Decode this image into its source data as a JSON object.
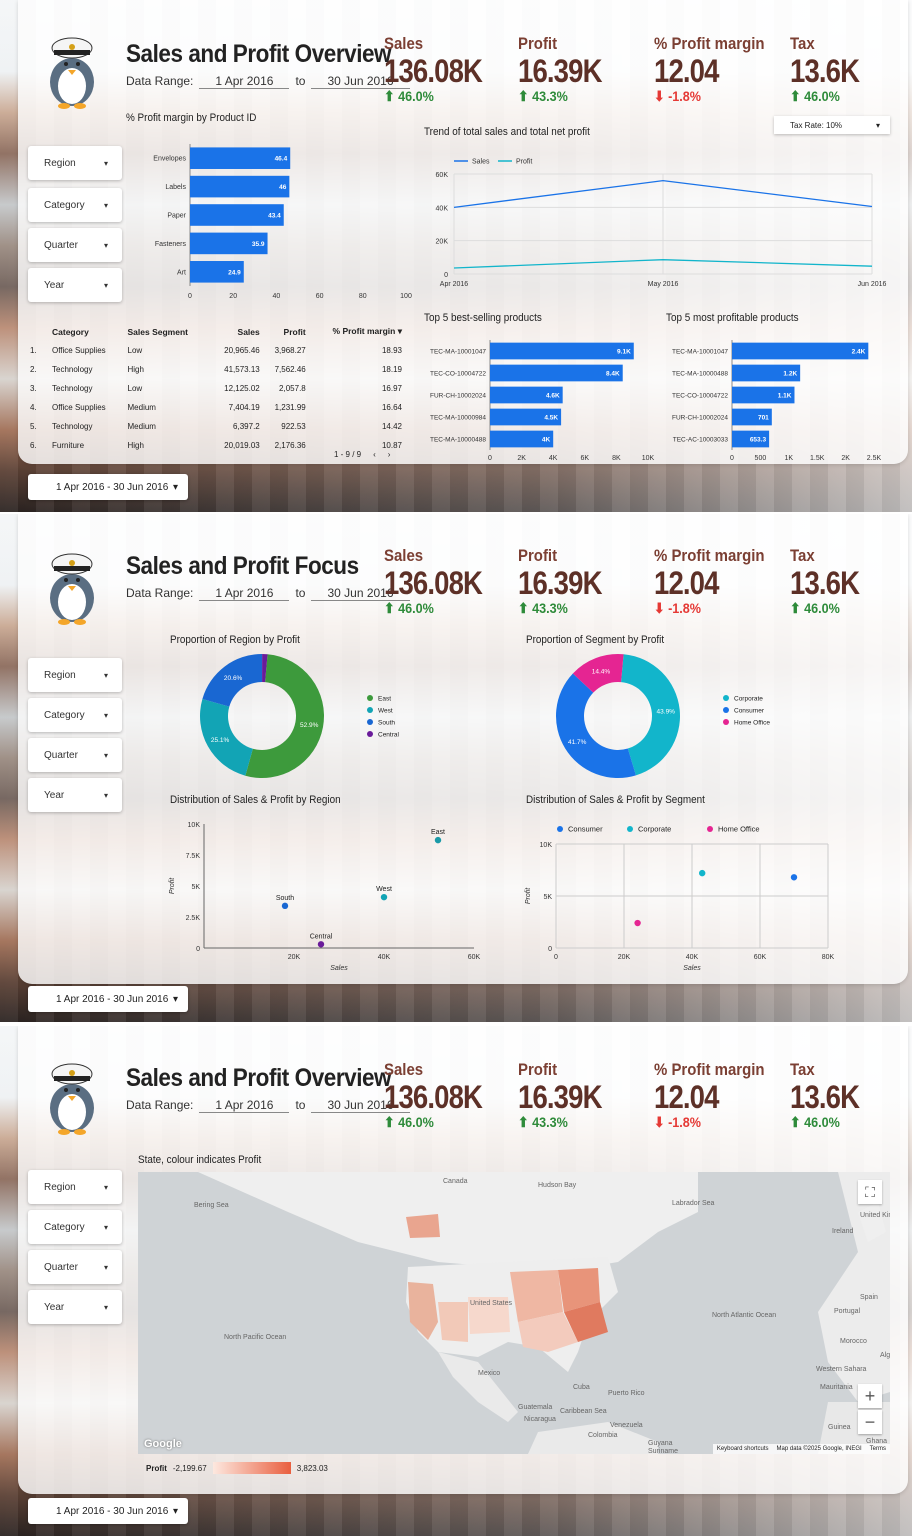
{
  "dashboard": {
    "date_range_label": "Data Range:",
    "start_date": "1 Apr 2016",
    "to_label": "to",
    "end_date": "30 Jun 2016",
    "date_picker": "1 Apr 2016 - 30 Jun 2016"
  },
  "kpis": [
    {
      "label": "Sales",
      "value": "136.08K",
      "change": "46.0%",
      "direction": "up"
    },
    {
      "label": "Profit",
      "value": "16.39K",
      "change": "43.3%",
      "direction": "up"
    },
    {
      "label": "% Profit margin",
      "value": "12.04",
      "change": "-1.8%",
      "direction": "down"
    },
    {
      "label": "Tax",
      "value": "13.6K",
      "change": "46.0%",
      "direction": "up"
    }
  ],
  "filters": [
    "Region",
    "Category",
    "Quarter",
    "Year"
  ],
  "pages": [
    {
      "title": "Sales and Profit Overview"
    },
    {
      "title": "Sales and Profit Focus"
    },
    {
      "title": "Sales and Profit Overview"
    }
  ],
  "tax_rate": "Tax Rate: 10%",
  "table": {
    "headers": [
      "Category",
      "Sales Segment",
      "Sales",
      "Profit",
      "% Profit margin"
    ],
    "rows": [
      [
        "1.",
        "Office Supplies",
        "Low",
        "20,965.46",
        "3,968.27",
        "18.93"
      ],
      [
        "2.",
        "Technology",
        "High",
        "41,573.13",
        "7,562.46",
        "18.19"
      ],
      [
        "3.",
        "Technology",
        "Low",
        "12,125.02",
        "2,057.8",
        "16.97"
      ],
      [
        "4.",
        "Office Supplies",
        "Medium",
        "7,404.19",
        "1,231.99",
        "16.64"
      ],
      [
        "5.",
        "Technology",
        "Medium",
        "6,397.2",
        "922.53",
        "14.42"
      ],
      [
        "6.",
        "Furniture",
        "High",
        "20,019.03",
        "2,176.36",
        "10.87"
      ]
    ],
    "pagination": "1 - 9 / 9"
  },
  "map": {
    "title": "State, colour indicates Profit",
    "legend_label": "Profit",
    "min": "-2,199.67",
    "max": "3,823.03",
    "footer_shortcuts": "Keyboard shortcuts",
    "footer_data": "Map data ©2025 Google, INEGI",
    "footer_terms": "Terms",
    "google": "Google",
    "labels": [
      "Canada",
      "Hudson Bay",
      "Bering Sea",
      "Labrador Sea",
      "North Pacific Ocean",
      "North Atlantic Ocean",
      "United States",
      "Mexico",
      "Cuba",
      "Puerto Rico",
      "Guatemala",
      "Nicaragua",
      "Venezuela",
      "Colombia",
      "Caribbean Sea",
      "Guyana",
      "Suriname",
      "United Kingdom",
      "Ireland",
      "Spain",
      "Portugal",
      "Morocco",
      "Western Sahara",
      "Mauritania",
      "Guinea",
      "Ghana",
      "Alg"
    ]
  },
  "chart_data": [
    {
      "type": "bar",
      "title": "% Profit margin by Product ID",
      "categories": [
        "Envelopes",
        "Labels",
        "Paper",
        "Fasteners",
        "Art"
      ],
      "values": [
        46.4,
        46,
        43.4,
        35.9,
        24.9
      ],
      "xlim": [
        0,
        100
      ],
      "ticks": [
        0,
        20,
        40,
        60,
        80,
        100
      ],
      "color": "#1a73e8"
    },
    {
      "type": "line",
      "title": "Trend of total sales and total net profit",
      "x": [
        "Apr 2016",
        "May 2016",
        "Jun 2016"
      ],
      "series": [
        {
          "name": "Sales",
          "values": [
            40000,
            56000,
            40500
          ],
          "color": "#1a73e8"
        },
        {
          "name": "Profit",
          "values": [
            3600,
            8600,
            4700
          ],
          "color": "#12b5cb"
        }
      ],
      "ylim": [
        0,
        60000
      ],
      "yticks": [
        "0",
        "20K",
        "40K",
        "60K"
      ]
    },
    {
      "type": "bar",
      "title": "Top 5 best-selling products",
      "categories": [
        "TEC-MA-10001047",
        "TEC-CO-10004722",
        "FUR-CH-10002024",
        "TEC-MA-10000984",
        "TEC-MA-10000488"
      ],
      "values": [
        9100,
        8400,
        4600,
        4500,
        4000
      ],
      "labels": [
        "9.1K",
        "8.4K",
        "4.6K",
        "4.5K",
        "4K"
      ],
      "xlim": [
        0,
        10000
      ],
      "ticks": [
        "0",
        "2K",
        "4K",
        "6K",
        "8K",
        "10K"
      ],
      "color": "#1a73e8"
    },
    {
      "type": "bar",
      "title": "Top 5 most profitable products",
      "categories": [
        "TEC-MA-10001047",
        "TEC-MA-10000488",
        "TEC-CO-10004722",
        "FUR-CH-10002024",
        "TEC-AC-10003033"
      ],
      "values": [
        2400,
        1200,
        1100,
        701,
        653.3
      ],
      "labels": [
        "2.4K",
        "1.2K",
        "1.1K",
        "701",
        "653.3"
      ],
      "xlim": [
        0,
        2500
      ],
      "ticks": [
        "0",
        "500",
        "1K",
        "1.5K",
        "2K",
        "2.5K"
      ],
      "color": "#1a73e8"
    },
    {
      "type": "pie",
      "title": "Proportion of Region by Profit",
      "labels": [
        "East",
        "West",
        "South",
        "Central"
      ],
      "values": [
        52.9,
        25.1,
        20.6,
        1.4
      ],
      "shown": [
        "52.9%",
        "25.1%",
        "20.6%",
        ""
      ],
      "colors": [
        "#3d9a3c",
        "#12a4b5",
        "#1967d2",
        "#6a1b9a"
      ]
    },
    {
      "type": "pie",
      "title": "Proportion of Segment by Profit",
      "labels": [
        "Corporate",
        "Consumer",
        "Home Office"
      ],
      "values": [
        43.9,
        41.7,
        14.4
      ],
      "shown": [
        "43.9%",
        "41.7%",
        "14.4%"
      ],
      "colors": [
        "#12b5cb",
        "#1a73e8",
        "#e52592"
      ]
    },
    {
      "type": "scatter",
      "title": "Distribution of Sales & Profit by Region",
      "xlabel": "Sales",
      "ylabel": "Profit",
      "xlim": [
        0,
        60000
      ],
      "ylim": [
        0,
        10000
      ],
      "xticks": [
        "20K",
        "40K",
        "60K"
      ],
      "yticks": [
        "0",
        "2.5K",
        "5K",
        "7.5K",
        "10K"
      ],
      "points": [
        {
          "name": "East",
          "x": 52000,
          "y": 8700,
          "color": "#1a9aa8"
        },
        {
          "name": "West",
          "x": 40000,
          "y": 4100,
          "color": "#12a4b5"
        },
        {
          "name": "South",
          "x": 18000,
          "y": 3400,
          "color": "#1967d2"
        },
        {
          "name": "Central",
          "x": 26000,
          "y": 300,
          "color": "#6a1b9a"
        }
      ]
    },
    {
      "type": "scatter",
      "title": "Distribution of Sales & Profit by Segment",
      "xlabel": "Sales",
      "ylabel": "Profit",
      "xlim": [
        0,
        80000
      ],
      "ylim": [
        0,
        10000
      ],
      "xticks": [
        "0",
        "20K",
        "40K",
        "60K",
        "80K"
      ],
      "yticks": [
        "0",
        "5K",
        "10K"
      ],
      "series": [
        {
          "name": "Consumer",
          "color": "#1a73e8"
        },
        {
          "name": "Corporate",
          "color": "#12b5cb"
        },
        {
          "name": "Home Office",
          "color": "#e52592"
        }
      ],
      "points": [
        {
          "name": "Consumer",
          "x": 70000,
          "y": 6800,
          "color": "#1a73e8"
        },
        {
          "name": "Corporate",
          "x": 43000,
          "y": 7200,
          "color": "#12b5cb"
        },
        {
          "name": "Home Office",
          "x": 24000,
          "y": 2400,
          "color": "#e52592"
        }
      ]
    }
  ]
}
